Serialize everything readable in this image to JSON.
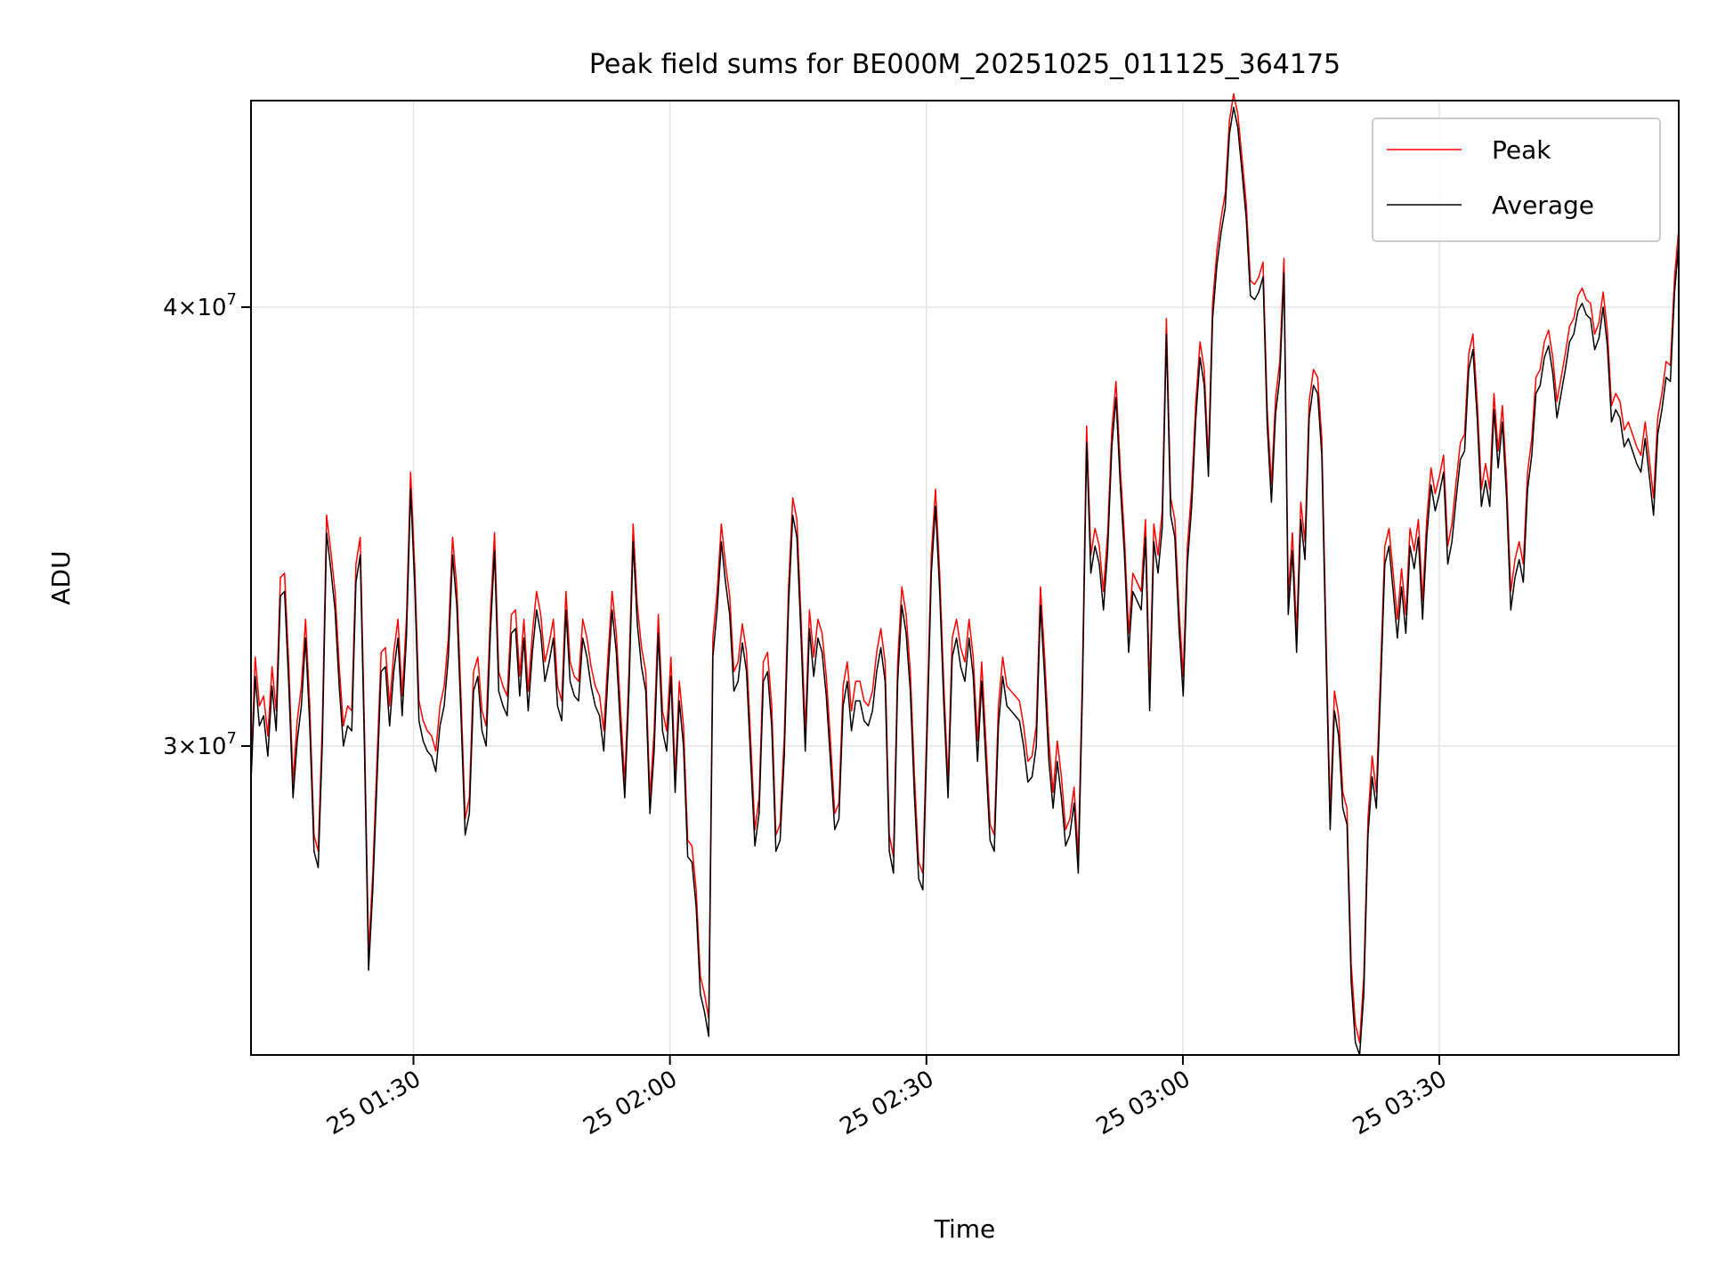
{
  "chart_data": {
    "type": "line",
    "title": "Peak field sums for BE000M_20251025_011125_364175",
    "xlabel": "Time",
    "ylabel": "ADU",
    "x_start": "2025-10-25 01:11",
    "x_end": "2025-10-25 03:58",
    "xlim": [
      "2025-10-25 01:11",
      "2025-10-25 03:58"
    ],
    "xticks": [
      {
        "value": "2025-10-25 01:30",
        "label": "25 01:30"
      },
      {
        "value": "2025-10-25 02:00",
        "label": "25 02:00"
      },
      {
        "value": "2025-10-25 02:30",
        "label": "25 02:30"
      },
      {
        "value": "2025-10-25 03:00",
        "label": "25 03:00"
      },
      {
        "value": "2025-10-25 03:30",
        "label": "25 03:30"
      }
    ],
    "ylim": [
      24500000,
      45800000
    ],
    "yscale": "log",
    "yticks": [
      {
        "value": 30000000,
        "mantissa": "3",
        "base": "10",
        "exponent": "7"
      },
      {
        "value": 40000000,
        "mantissa": "4",
        "base": "10",
        "exponent": "7"
      }
    ],
    "grid": true,
    "legend_position": "top-right",
    "series": [
      {
        "name": "Peak",
        "color": "#ff0000",
        "values": [
          29500000,
          31800000,
          30800000,
          31000000,
          30200000,
          31600000,
          30700000,
          33500000,
          33600000,
          31600000,
          29300000,
          30500000,
          31200000,
          32600000,
          30800000,
          28300000,
          28000000,
          30500000,
          34900000,
          34100000,
          33200000,
          31600000,
          30400000,
          30800000,
          30700000,
          33800000,
          34400000,
          30400000,
          26200000,
          27600000,
          29700000,
          31900000,
          32000000,
          30800000,
          31900000,
          32600000,
          31000000,
          32600000,
          35900000,
          33700000,
          30900000,
          30500000,
          30300000,
          30200000,
          29900000,
          30800000,
          31200000,
          32200000,
          34400000,
          33300000,
          31000000,
          28600000,
          29000000,
          31500000,
          31800000,
          30700000,
          30400000,
          32700000,
          34500000,
          31500000,
          31200000,
          31000000,
          32700000,
          32800000,
          31400000,
          32600000,
          31100000,
          32300000,
          33200000,
          32700000,
          31700000,
          32100000,
          32600000,
          31200000,
          30900000,
          33200000,
          31700000,
          31400000,
          31300000,
          32600000,
          32200000,
          31600000,
          31200000,
          31000000,
          30300000,
          31800000,
          33200000,
          32300000,
          30700000,
          29300000,
          31500000,
          34700000,
          32900000,
          32000000,
          31500000,
          29000000,
          30300000,
          32700000,
          30700000,
          30300000,
          31800000,
          29400000,
          31300000,
          30400000,
          28200000,
          28100000,
          27300000,
          25800000,
          25500000,
          25100000,
          32200000,
          33200000,
          34700000,
          33800000,
          33100000,
          31500000,
          31700000,
          32500000,
          31900000,
          30100000,
          28400000,
          29000000,
          31700000,
          31900000,
          30800000,
          28300000,
          28500000,
          30200000,
          33300000,
          35300000,
          34800000,
          32600000,
          30300000,
          32800000,
          31800000,
          32600000,
          32300000,
          31400000,
          30100000,
          28700000,
          28900000,
          31200000,
          31700000,
          30700000,
          31300000,
          31300000,
          30900000,
          30800000,
          31100000,
          31900000,
          32400000,
          31700000,
          28300000,
          27900000,
          31700000,
          33300000,
          32700000,
          31500000,
          29400000,
          27800000,
          27600000,
          30600000,
          34000000,
          35500000,
          33600000,
          31200000,
          29300000,
          32200000,
          32600000,
          32000000,
          31700000,
          32600000,
          31800000,
          30100000,
          31700000,
          30100000,
          28500000,
          28300000,
          30800000,
          31800000,
          31200000,
          31100000,
          31000000,
          30900000,
          30400000,
          29700000,
          29800000,
          30400000,
          33300000,
          31800000,
          30100000,
          29100000,
          30100000,
          29400000,
          28400000,
          28600000,
          29200000,
          27900000,
          31500000,
          37000000,
          34000000,
          34600000,
          34200000,
          33200000,
          34500000,
          36900000,
          38100000,
          36000000,
          34400000,
          32300000,
          33600000,
          33400000,
          33200000,
          34800000,
          31100000,
          34700000,
          34000000,
          35000000,
          39700000,
          35300000,
          34800000,
          32800000,
          31400000,
          34200000,
          35500000,
          37600000,
          39100000,
          38400000,
          36200000,
          40100000,
          41500000,
          42400000,
          43100000,
          45200000,
          46000000,
          45400000,
          44100000,
          42800000,
          40700000,
          40600000,
          40800000,
          41200000,
          37400000,
          35600000,
          37700000,
          38600000,
          41300000,
          33100000,
          34500000,
          32300000,
          35200000,
          34300000,
          37600000,
          38400000,
          38200000,
          36700000,
          32300000,
          28700000,
          31100000,
          30600000,
          29100000,
          28800000,
          26000000,
          25000000,
          24700000,
          25800000,
          28600000,
          29800000,
          29100000,
          31500000,
          34200000,
          34600000,
          33600000,
          32600000,
          33700000,
          32700000,
          34600000,
          34100000,
          34800000,
          33000000,
          34800000,
          36000000,
          35400000,
          35800000,
          36300000,
          34200000,
          34700000,
          35700000,
          36600000,
          36800000,
          38800000,
          39300000,
          37600000,
          35500000,
          36100000,
          35500000,
          37800000,
          36400000,
          37500000,
          35700000,
          33200000,
          33900000,
          34300000,
          33800000,
          35900000,
          36700000,
          38200000,
          38400000,
          39100000,
          39400000,
          38700000,
          37600000,
          38200000,
          38800000,
          39500000,
          39700000,
          40300000,
          40500000,
          40200000,
          40100000,
          39300000,
          39600000,
          40400000,
          39400000,
          37500000,
          37800000,
          37600000,
          36900000,
          37100000,
          36800000,
          36500000,
          36300000,
          37100000,
          36200000,
          35300000,
          37200000,
          37800000,
          38600000,
          38500000,
          40800000,
          42100000
        ],
        "note": "approximate read-off of the dense red trace"
      },
      {
        "name": "Average",
        "color": "#000000",
        "values": [
          29300000,
          31400000,
          30400000,
          30600000,
          29800000,
          31200000,
          30300000,
          33100000,
          33200000,
          31200000,
          29000000,
          30100000,
          30800000,
          32200000,
          30400000,
          28000000,
          27700000,
          30100000,
          34500000,
          33700000,
          32800000,
          31200000,
          30000000,
          30400000,
          30300000,
          33400000,
          34000000,
          30000000,
          25900000,
          27300000,
          29300000,
          31500000,
          31600000,
          30400000,
          31500000,
          32200000,
          30600000,
          32200000,
          35500000,
          33300000,
          30500000,
          30100000,
          29900000,
          29800000,
          29500000,
          30400000,
          30800000,
          31800000,
          34000000,
          32900000,
          30600000,
          28300000,
          28700000,
          31100000,
          31400000,
          30300000,
          30000000,
          32300000,
          34100000,
          31100000,
          30800000,
          30600000,
          32300000,
          32400000,
          31000000,
          32200000,
          30700000,
          31900000,
          32800000,
          32300000,
          31300000,
          31700000,
          32200000,
          30800000,
          30500000,
          32800000,
          31300000,
          31000000,
          30900000,
          32200000,
          31800000,
          31200000,
          30800000,
          30600000,
          29900000,
          31400000,
          32800000,
          31900000,
          30300000,
          29000000,
          31100000,
          34300000,
          32500000,
          31600000,
          31100000,
          28700000,
          29900000,
          32300000,
          30300000,
          29900000,
          31400000,
          29100000,
          30900000,
          30000000,
          27900000,
          27800000,
          27000000,
          25500000,
          25200000,
          24800000,
          31800000,
          32800000,
          34300000,
          33400000,
          32700000,
          31100000,
          31300000,
          32100000,
          31500000,
          29700000,
          28100000,
          28700000,
          31300000,
          31500000,
          30400000,
          28000000,
          28200000,
          29800000,
          32900000,
          34900000,
          34400000,
          32200000,
          29900000,
          32400000,
          31400000,
          32200000,
          31900000,
          31000000,
          29700000,
          28400000,
          28600000,
          30800000,
          31300000,
          30300000,
          30900000,
          30900000,
          30500000,
          30400000,
          30700000,
          31500000,
          32000000,
          31300000,
          28000000,
          27600000,
          31300000,
          32900000,
          32300000,
          31100000,
          29000000,
          27500000,
          27300000,
          30200000,
          33600000,
          35100000,
          33200000,
          30800000,
          29000000,
          31800000,
          32200000,
          31600000,
          31300000,
          32200000,
          31400000,
          29700000,
          31300000,
          29700000,
          28200000,
          28000000,
          30400000,
          31400000,
          30800000,
          30700000,
          30600000,
          30500000,
          30000000,
          29300000,
          29400000,
          30000000,
          32900000,
          31400000,
          29700000,
          28800000,
          29700000,
          29000000,
          28100000,
          28300000,
          28900000,
          27600000,
          31100000,
          36600000,
          33600000,
          34200000,
          33800000,
          32800000,
          34100000,
          36500000,
          37700000,
          35600000,
          34000000,
          31900000,
          33200000,
          33000000,
          32800000,
          34400000,
          30700000,
          34300000,
          33600000,
          34600000,
          39300000,
          34900000,
          34400000,
          32400000,
          31000000,
          33800000,
          35100000,
          37200000,
          38700000,
          38000000,
          35800000,
          39700000,
          41100000,
          42000000,
          42700000,
          44800000,
          45600000,
          45000000,
          43700000,
          42400000,
          40300000,
          40200000,
          40400000,
          40800000,
          37000000,
          35200000,
          37300000,
          38200000,
          40900000,
          32700000,
          34100000,
          31900000,
          34800000,
          33900000,
          37200000,
          38000000,
          37800000,
          36300000,
          31900000,
          28400000,
          30700000,
          30200000,
          28800000,
          28500000,
          25700000,
          24700000,
          24500000,
          25500000,
          28300000,
          29400000,
          28800000,
          31100000,
          33800000,
          34200000,
          33200000,
          32200000,
          33300000,
          32300000,
          34200000,
          33700000,
          34400000,
          32600000,
          34400000,
          35600000,
          35000000,
          35400000,
          35900000,
          33800000,
          34300000,
          35300000,
          36200000,
          36400000,
          38400000,
          38900000,
          37200000,
          35100000,
          35700000,
          35100000,
          37400000,
          36000000,
          37100000,
          35300000,
          32800000,
          33500000,
          33900000,
          33400000,
          35500000,
          36300000,
          37800000,
          38000000,
          38700000,
          39000000,
          38300000,
          37200000,
          37800000,
          38400000,
          39100000,
          39300000,
          39900000,
          40100000,
          39800000,
          39700000,
          38900000,
          39200000,
          40000000,
          39000000,
          37100000,
          37400000,
          37200000,
          36500000,
          36700000,
          36400000,
          36100000,
          35900000,
          36700000,
          35800000,
          34900000,
          36800000,
          37400000,
          38200000,
          38100000,
          40400000,
          41700000
        ],
        "note": "approximate read-off of the dense black trace"
      }
    ]
  }
}
